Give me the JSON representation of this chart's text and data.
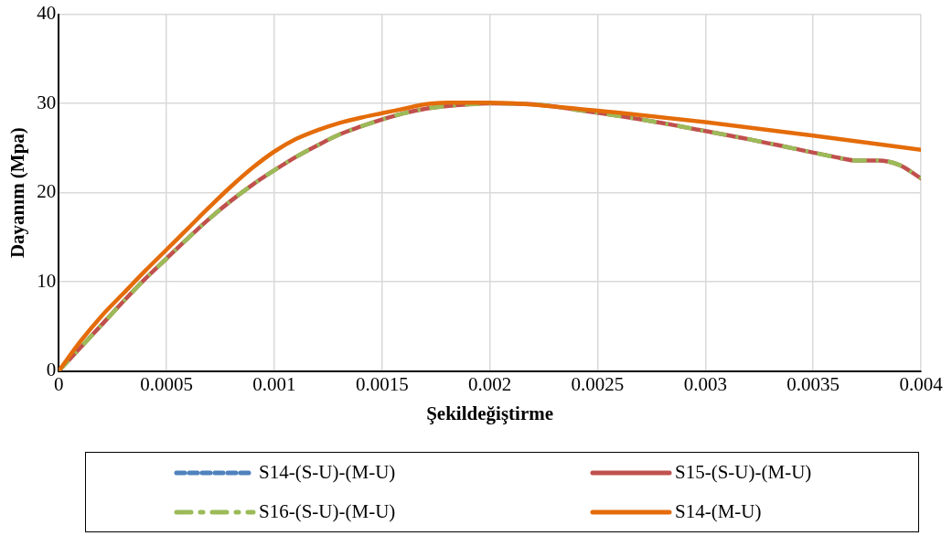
{
  "chart_data": {
    "type": "line",
    "xlabel": "Şekildeğiştirme",
    "ylabel": "Dayanım (Mpa)",
    "xlim": [
      0,
      0.004
    ],
    "xticks": [
      0,
      0.0005,
      0.001,
      0.0015,
      0.002,
      0.0025,
      0.003,
      0.0035,
      0.004
    ],
    "ylim": [
      0,
      40
    ],
    "yticks": [
      0,
      10,
      20,
      30,
      40
    ],
    "grid": true,
    "legend": "bottom",
    "marker": "none",
    "series": [
      {
        "name": "S14-(S-U)-(M-U)",
        "color": "#4f81bd",
        "line_style": "dashed"
      },
      {
        "name": "S15-(S-U)-(M-U)",
        "color": "#c0504d",
        "line_style": "solid",
        "x": [
          0,
          0.0001,
          0.0002,
          0.0003,
          0.0004,
          0.0005,
          0.0006,
          0.0007,
          0.0008,
          0.0009,
          0.001,
          0.0011,
          0.0012,
          0.0013,
          0.0014,
          0.0015,
          0.0016,
          0.0017,
          0.0018,
          0.0019,
          0.002,
          0.0022,
          0.0024,
          0.0026,
          0.0028,
          0.003,
          0.0032,
          0.0034,
          0.0036,
          0.0037,
          0.0038,
          0.0039,
          0.004
        ],
        "values": [
          0,
          2.6,
          5.2,
          7.8,
          10.3,
          12.6,
          14.9,
          17.1,
          19.1,
          20.9,
          22.5,
          24,
          25.3,
          26.5,
          27.4,
          28.2,
          28.9,
          29.4,
          29.7,
          29.9,
          30,
          29.9,
          29.3,
          28.6,
          27.8,
          26.9,
          26,
          25,
          24,
          23.6,
          23.6,
          23.1,
          21.6
        ]
      },
      {
        "name": "S16-(S-U)-(M-U)",
        "color": "#9bbb59",
        "line_style": "dashdot",
        "x": [
          0,
          0.0001,
          0.0002,
          0.0003,
          0.0004,
          0.0005,
          0.0006,
          0.0007,
          0.0008,
          0.0009,
          0.001,
          0.0011,
          0.0012,
          0.0013,
          0.0014,
          0.0015,
          0.0016,
          0.0017,
          0.0018,
          0.0019,
          0.002,
          0.0022,
          0.0024,
          0.0026,
          0.0028,
          0.003,
          0.0032,
          0.0034,
          0.0036,
          0.0037,
          0.0038,
          0.0039,
          0.004
        ],
        "values": [
          0,
          2.6,
          5.2,
          7.8,
          10.3,
          12.6,
          14.9,
          17.1,
          19.1,
          20.9,
          22.5,
          24,
          25.3,
          26.5,
          27.4,
          28.2,
          28.9,
          29.4,
          29.7,
          29.9,
          30,
          29.9,
          29.3,
          28.6,
          27.8,
          26.9,
          26,
          25,
          24,
          23.6,
          23.6,
          23.1,
          21.6
        ]
      },
      {
        "name": "S14-(M-U)",
        "color": "#e46c0a",
        "line_style": "solid",
        "x": [
          0,
          0.0001,
          0.0002,
          0.0003,
          0.0004,
          0.0005,
          0.0006,
          0.0007,
          0.0008,
          0.0009,
          0.001,
          0.0011,
          0.0012,
          0.0013,
          0.0014,
          0.0015,
          0.0016,
          0.0017,
          0.0018,
          0.002,
          0.0025,
          0.003,
          0.0035,
          0.004
        ],
        "values": [
          0,
          3.3,
          6.2,
          8.7,
          11.2,
          13.6,
          16,
          18.4,
          20.7,
          22.8,
          24.6,
          26,
          27,
          27.8,
          28.4,
          28.9,
          29.4,
          29.9,
          30.1,
          30.1,
          29.2,
          27.9,
          26.4,
          24.8
        ]
      }
    ]
  }
}
